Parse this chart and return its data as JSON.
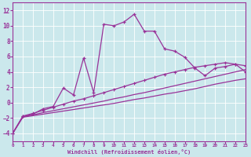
{
  "xlabel": "Windchill (Refroidissement éolien,°C)",
  "bg_color": "#cbe8ec",
  "line_color": "#993399",
  "grid_color": "#ffffff",
  "xlim": [
    0,
    23
  ],
  "ylim": [
    -5.0,
    13.0
  ],
  "yticks": [
    -4,
    -2,
    0,
    2,
    4,
    6,
    8,
    10,
    12
  ],
  "xticks": [
    0,
    1,
    2,
    3,
    4,
    5,
    6,
    7,
    8,
    9,
    10,
    11,
    12,
    13,
    14,
    15,
    16,
    17,
    18,
    19,
    20,
    21,
    22,
    23
  ],
  "s1_x": [
    0,
    1,
    2,
    3,
    4,
    5,
    6,
    7,
    8,
    9,
    10,
    11,
    12,
    13,
    14,
    15,
    16,
    17,
    18,
    19,
    20,
    21,
    22,
    23
  ],
  "s1_y": [
    -4.0,
    -1.8,
    -1.5,
    -0.8,
    -0.5,
    1.9,
    1.0,
    5.8,
    1.3,
    10.2,
    10.0,
    10.5,
    11.5,
    9.3,
    9.3,
    7.0,
    6.7,
    5.9,
    4.5,
    3.5,
    4.5,
    4.7,
    5.0,
    4.0
  ],
  "s2_x": [
    0,
    1,
    2,
    3,
    4,
    5,
    6,
    7,
    8,
    9,
    10,
    11,
    12,
    13,
    14,
    15,
    16,
    17,
    18,
    19,
    20,
    21,
    22,
    23
  ],
  "s2_y": [
    -4.0,
    -1.9,
    -1.7,
    -1.5,
    -1.3,
    -1.1,
    -0.9,
    -0.7,
    -0.5,
    -0.3,
    -0.1,
    0.15,
    0.4,
    0.6,
    0.85,
    1.1,
    1.3,
    1.55,
    1.8,
    2.1,
    2.4,
    2.65,
    2.9,
    3.1
  ],
  "s3_x": [
    0,
    1,
    2,
    3,
    4,
    5,
    6,
    7,
    8,
    9,
    10,
    11,
    12,
    13,
    14,
    15,
    16,
    17,
    18,
    19,
    20,
    21,
    22,
    23
  ],
  "s3_y": [
    -4.0,
    -1.85,
    -1.6,
    -1.3,
    -1.05,
    -0.8,
    -0.55,
    -0.3,
    -0.05,
    0.2,
    0.5,
    0.75,
    1.05,
    1.3,
    1.6,
    1.9,
    2.2,
    2.5,
    2.8,
    3.1,
    3.4,
    3.7,
    4.0,
    4.3
  ],
  "s4_x": [
    0,
    1,
    2,
    3,
    4,
    5,
    6,
    7,
    8,
    9,
    10,
    11,
    12,
    13,
    14,
    15,
    16,
    17,
    18,
    19,
    20,
    21,
    22,
    23
  ],
  "s4_y": [
    -4.0,
    -1.75,
    -1.4,
    -1.0,
    -0.6,
    -0.2,
    0.2,
    0.5,
    0.9,
    1.3,
    1.7,
    2.1,
    2.5,
    2.9,
    3.3,
    3.7,
    4.0,
    4.3,
    4.6,
    4.8,
    5.0,
    5.2,
    5.0,
    4.8
  ]
}
